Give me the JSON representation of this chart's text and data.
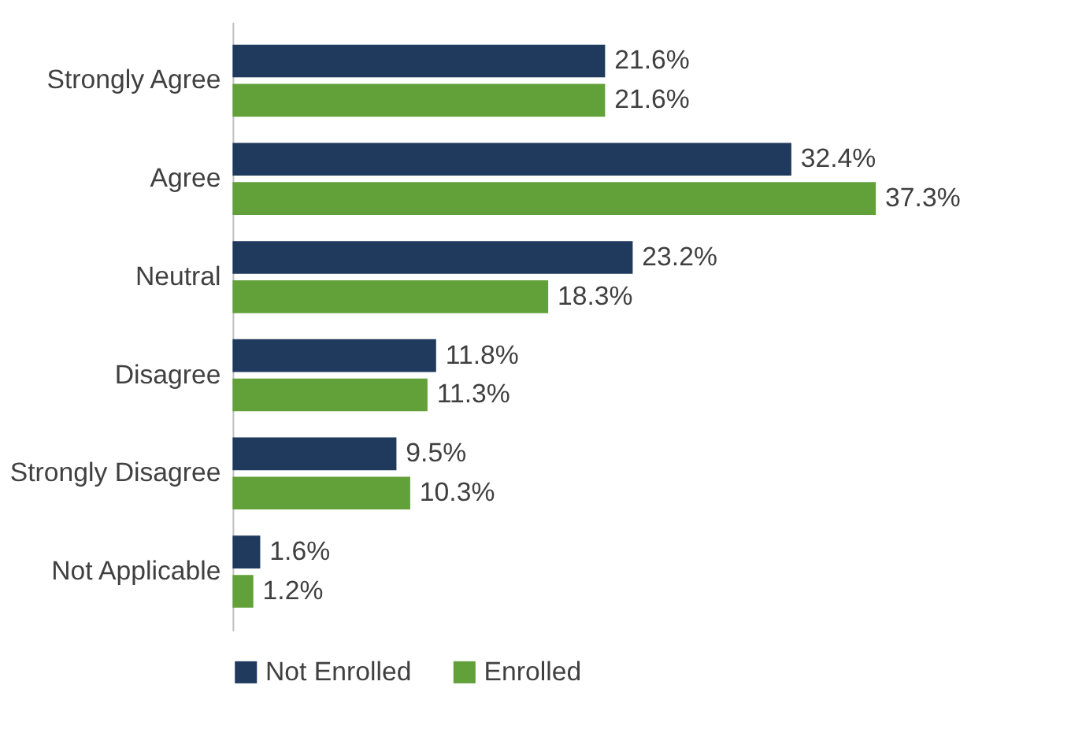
{
  "chart_data": {
    "type": "bar",
    "orientation": "horizontal",
    "categories": [
      "Strongly Agree",
      "Agree",
      "Neutral",
      "Disagree",
      "Strongly Disagree",
      "Not Applicable"
    ],
    "series": [
      {
        "name": "Not Enrolled",
        "color": "#203a5e",
        "values": [
          21.6,
          32.4,
          23.2,
          11.8,
          9.5,
          1.6
        ],
        "value_labels": [
          "21.6%",
          "32.4%",
          "23.2%",
          "11.8%",
          "9.5%",
          "1.6%"
        ]
      },
      {
        "name": "Enrolled",
        "color": "#62a03a",
        "values": [
          21.6,
          37.3,
          18.3,
          11.3,
          10.3,
          1.2
        ],
        "value_labels": [
          "21.6%",
          "37.3%",
          "18.3%",
          "11.3%",
          "10.3%",
          "1.2%"
        ]
      }
    ],
    "legend": "bottom"
  }
}
